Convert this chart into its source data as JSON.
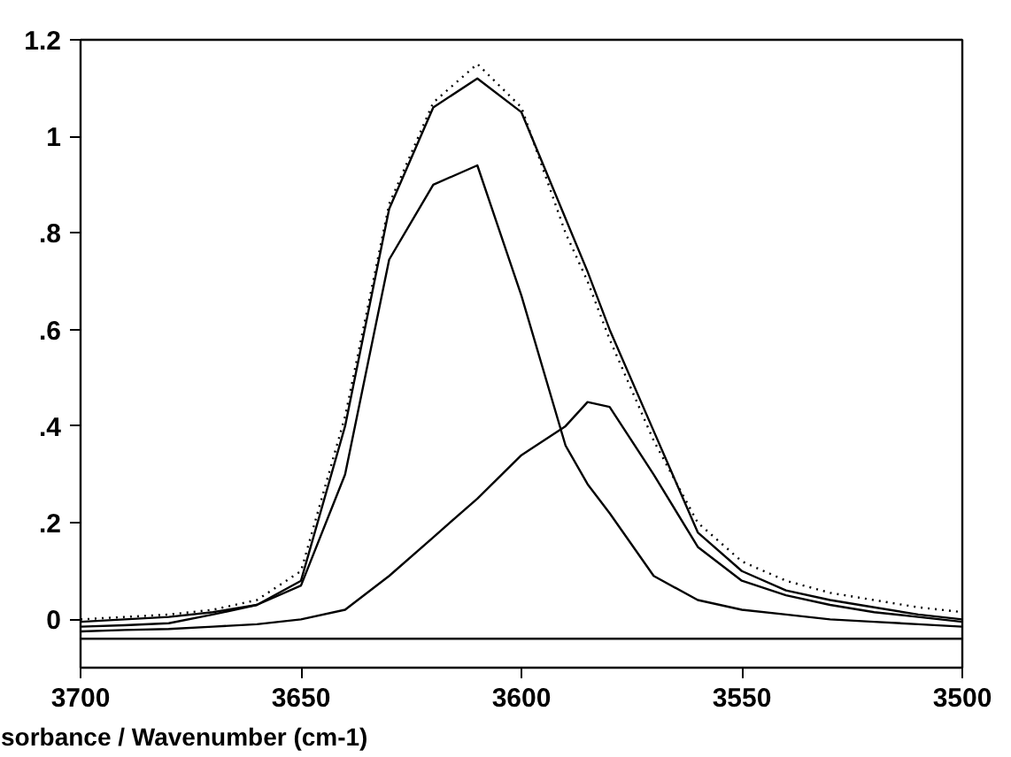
{
  "chart_data": {
    "type": "line",
    "xlabel": "sorbance / Wavenumber (cm-1)",
    "x": [
      3700,
      3690,
      3680,
      3670,
      3660,
      3650,
      3640,
      3630,
      3620,
      3610,
      3600,
      3590,
      3585,
      3580,
      3570,
      3560,
      3550,
      3540,
      3530,
      3520,
      3510,
      3500
    ],
    "series": [
      {
        "color": "#000000",
        "line_style": "dotted",
        "values": [
          0.0,
          0.005,
          0.01,
          0.02,
          0.04,
          0.1,
          0.42,
          0.86,
          1.07,
          1.15,
          1.06,
          0.8,
          0.7,
          0.58,
          0.37,
          0.2,
          0.12,
          0.08,
          0.055,
          0.04,
          0.025,
          0.015
        ]
      },
      {
        "color": "#000000",
        "line_style": "solid",
        "values": [
          -0.005,
          0.0,
          0.005,
          0.015,
          0.03,
          0.08,
          0.4,
          0.85,
          1.06,
          1.12,
          1.05,
          0.83,
          0.72,
          0.6,
          0.39,
          0.18,
          0.1,
          0.06,
          0.04,
          0.025,
          0.01,
          0.0
        ]
      },
      {
        "color": "#000000",
        "line_style": "solid",
        "values": [
          -0.015,
          -0.012,
          -0.008,
          0.01,
          0.03,
          0.07,
          0.3,
          0.745,
          0.9,
          0.94,
          0.67,
          0.36,
          0.28,
          0.22,
          0.09,
          0.04,
          0.02,
          0.01,
          0.0,
          -0.005,
          -0.01,
          -0.015
        ]
      },
      {
        "color": "#000000",
        "line_style": "solid",
        "values": [
          -0.025,
          -0.022,
          -0.02,
          -0.015,
          -0.01,
          0.0,
          0.02,
          0.09,
          0.17,
          0.25,
          0.34,
          0.4,
          0.45,
          0.44,
          0.3,
          0.15,
          0.08,
          0.05,
          0.03,
          0.015,
          0.005,
          -0.005
        ]
      },
      {
        "color": "#000000",
        "line_style": "solid",
        "x": [
          3700,
          3500
        ],
        "values": [
          -0.04,
          -0.04
        ]
      }
    ],
    "xlim": [
      3700,
      3500
    ],
    "xticks": [
      3700,
      3650,
      3600,
      3550,
      3500
    ],
    "ylim": [
      -0.1,
      1.2
    ],
    "yticks": [
      {
        "value": 0,
        "label": "0"
      },
      {
        "value": 0.2,
        "label": ".2"
      },
      {
        "value": 0.4,
        "label": ".4"
      },
      {
        "value": 0.6,
        "label": ".6"
      },
      {
        "value": 0.8,
        "label": ".8"
      },
      {
        "value": 1,
        "label": "1"
      },
      {
        "value": 1.2,
        "label": "1.2"
      }
    ],
    "grid": false,
    "marker": "none"
  }
}
